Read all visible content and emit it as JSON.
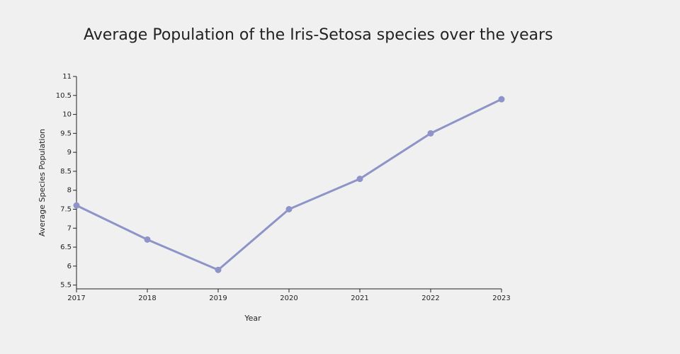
{
  "chart_data": {
    "type": "line",
    "title": "Average Population of the Iris-Setosa species over the years",
    "x_label": "Year",
    "y_label": "Average Species Population",
    "x": [
      2017,
      2018,
      2019,
      2020,
      2021,
      2022,
      2023
    ],
    "series": [
      {
        "color": "#8e94c8",
        "values": [
          7.6,
          6.7,
          5.9,
          7.5,
          8.3,
          9.5,
          10.4
        ]
      }
    ],
    "xlim": [
      2017,
      2023
    ],
    "xticks": [
      2017,
      2018,
      2019,
      2020,
      2021,
      2022,
      2023
    ],
    "ylim": [
      5.4,
      11
    ],
    "yticks": [
      5.5,
      6,
      6.5,
      7,
      7.5,
      8,
      8.5,
      9,
      9.5,
      10,
      10.5,
      11
    ],
    "grid": false
  }
}
